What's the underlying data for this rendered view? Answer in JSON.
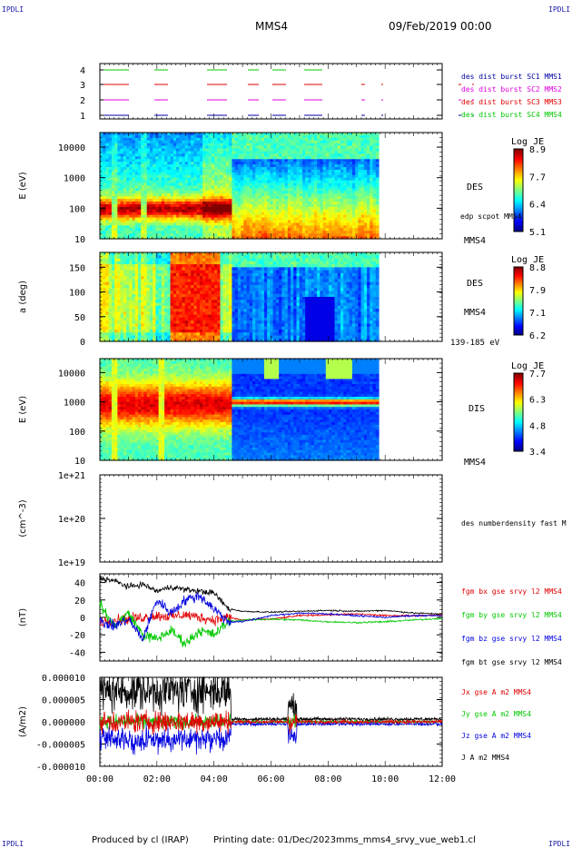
{
  "corners": {
    "tl": "IPDLI",
    "tr": "IPDLI",
    "bl": "IPDLI",
    "br": "IPDLI"
  },
  "header": {
    "spacecraft": "MMS4",
    "date": "09/Feb/2019 00:00"
  },
  "footer": {
    "produced": "Produced by cl (IRAP)",
    "printing": "Printing date: 01/Dec/2023",
    "product": "mms_mms4_srvy_vue_web1.cl"
  },
  "colors": {
    "red": "#e00000",
    "green": "#00c800",
    "blue": "#0000e0",
    "magenta": "#e000e0",
    "black": "#000000",
    "navy": "#0000a0"
  },
  "chart_data": [
    {
      "type": "line",
      "name": "burst",
      "yticks": [
        "1",
        "2",
        "3",
        "4"
      ],
      "series": [
        {
          "name": "des dist burst SC1 MMS1",
          "color": "#0000a0",
          "level": 1
        },
        {
          "name": "des dist burst SC2 MMS2",
          "color": "#e000e0",
          "level": 2
        },
        {
          "name": "des dist burst SC3 MMS3",
          "color": "#e00000",
          "level": 3
        },
        {
          "name": "des dist burst SC4 MMS4",
          "color": "#00c800",
          "level": 4
        }
      ]
    },
    {
      "type": "heatmap",
      "name": "des-energy",
      "ylabel": "E (eV)",
      "yscale": "log",
      "ylim": [
        10,
        30000
      ],
      "yticks": [
        "10",
        "100",
        "1000",
        "10000"
      ],
      "side_labels": [
        "DES",
        "edp scpot MMS4",
        "MMS4"
      ],
      "colorbar": {
        "title": "Log JE",
        "ticks": [
          "8.9",
          "7.7",
          "6.4",
          "5.1"
        ]
      }
    },
    {
      "type": "heatmap",
      "name": "des-pitch",
      "ylabel": "a (deg)",
      "ylim": [
        0,
        180
      ],
      "yticks": [
        "0",
        "50",
        "100",
        "150"
      ],
      "side_labels": [
        "DES",
        "MMS4",
        "139-185 eV"
      ],
      "colorbar": {
        "title": "Log JE",
        "ticks": [
          "8.8",
          "7.9",
          "7.1",
          "6.2"
        ]
      }
    },
    {
      "type": "heatmap",
      "name": "dis-energy",
      "ylabel": "E (eV)",
      "yscale": "log",
      "ylim": [
        10,
        30000
      ],
      "yticks": [
        "10",
        "100",
        "1000",
        "10000"
      ],
      "side_labels": [
        "DIS",
        "MMS4"
      ],
      "colorbar": {
        "title": "Log JE",
        "ticks": [
          "7.7",
          "6.3",
          "4.8",
          "3.4"
        ]
      }
    },
    {
      "type": "line",
      "name": "density",
      "ylabel": "(cm^-3)",
      "yscale": "log",
      "yticks": [
        "1e+19",
        "1e+20",
        "1e+21"
      ],
      "series": [
        {
          "name": "des numberdensity fast M",
          "color": "#000000",
          "values": []
        }
      ]
    },
    {
      "type": "line",
      "name": "fgm",
      "ylabel": "(nT)",
      "ylim": [
        -50,
        50
      ],
      "yticks": [
        "-40",
        "-20",
        "0",
        "20",
        "40"
      ],
      "x": [
        0,
        0.5,
        1,
        1.5,
        2,
        2.5,
        3,
        3.5,
        4,
        4.5,
        5,
        6,
        7,
        8,
        9,
        10,
        11,
        12
      ],
      "series": [
        {
          "name": "fgm bx gse srvy l2 MMS4",
          "color": "#e00000",
          "values": [
            -5,
            -3,
            -2,
            0,
            2,
            1,
            3,
            0,
            -3,
            0,
            -3,
            -2,
            2,
            3,
            4,
            2,
            2,
            3
          ]
        },
        {
          "name": "fgm by gse srvy l2 MMS4",
          "color": "#00c800",
          "values": [
            15,
            -10,
            5,
            -20,
            -25,
            -15,
            -30,
            -15,
            -20,
            -5,
            -3,
            -2,
            -3,
            -5,
            -6,
            -5,
            -3,
            -1
          ]
        },
        {
          "name": "fgm bz gse srvy l2 MMS4",
          "color": "#0000e0",
          "values": [
            -5,
            -10,
            -2,
            -25,
            20,
            5,
            20,
            25,
            10,
            -5,
            -5,
            2,
            5,
            4,
            2,
            0,
            2,
            2
          ]
        },
        {
          "name": "fgm bt gse srvy l2 MMS4",
          "color": "#000000",
          "values": [
            45,
            42,
            35,
            38,
            30,
            35,
            32,
            30,
            28,
            10,
            7,
            6,
            7,
            8,
            7,
            8,
            5,
            4
          ]
        }
      ]
    },
    {
      "type": "line",
      "name": "current",
      "ylabel": "(A/m2)",
      "ylim": [
        -1e-05,
        1e-05
      ],
      "yticks": [
        "-0.000010",
        "-0.000005",
        "0.000000",
        "0.000005",
        "0.000010"
      ],
      "xticks": [
        "00:00",
        "02:00",
        "04:00",
        "06:00",
        "08:00",
        "10:00",
        "12:00"
      ],
      "series": [
        {
          "name": "Jx gse A m2 MMS4",
          "color": "#e00000"
        },
        {
          "name": "Jy gse A m2 MMS4",
          "color": "#00c800"
        },
        {
          "name": "Jz gse A m2 MMS4",
          "color": "#0000e0"
        },
        {
          "name": "J A m2 MMS4",
          "color": "#000000"
        }
      ]
    }
  ]
}
